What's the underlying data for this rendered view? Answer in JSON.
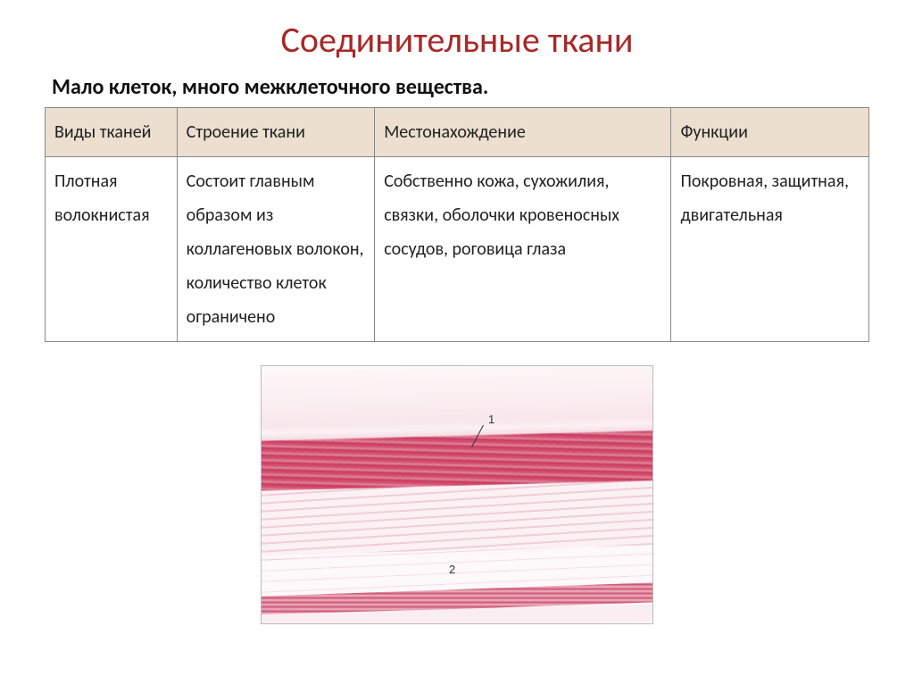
{
  "title": "Соединительные ткани",
  "subtitle": "Мало клеток, много межклеточного вещества.",
  "table": {
    "header_bg": "#ecdfd0",
    "border_color": "#888888",
    "columns": [
      {
        "label": "Виды тканей",
        "width_pct": 16
      },
      {
        "label": "Строение ткани",
        "width_pct": 24
      },
      {
        "label": "Местонахождение",
        "width_pct": 36
      },
      {
        "label": "Функции",
        "width_pct": 24
      }
    ],
    "rows": [
      [
        "Плотная волокнистая",
        "Состоит главным образом из коллагеновых волокон, количество клеток ограничено",
        "Собственно кожа, сухожилия, связки, оболочки кровеносных сосудов, роговица глаза",
        "Покровная, защитная, двигательная"
      ]
    ]
  },
  "micrograph": {
    "label_1": "1",
    "label_2": "2",
    "colors": {
      "dense_fiber": "#c7385a",
      "mid_fiber": "#e2879d",
      "pale_ground": "#fdf7f8",
      "bottom_band": "#cf5a78"
    }
  },
  "colors": {
    "title": "#a92828",
    "text": "#222222",
    "background": "#ffffff"
  }
}
